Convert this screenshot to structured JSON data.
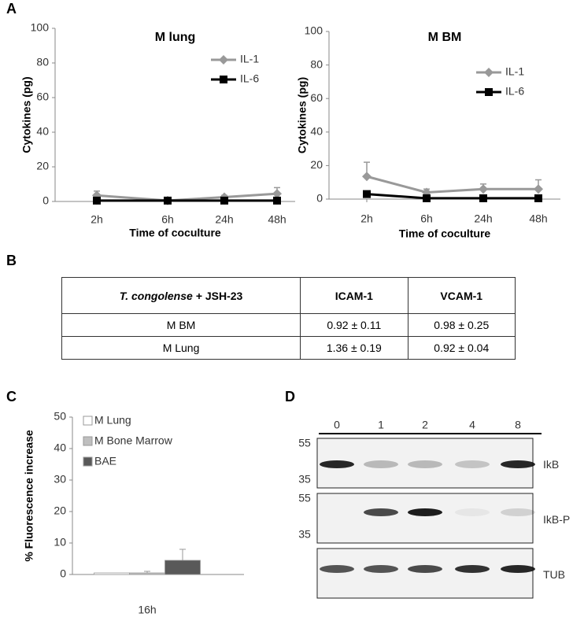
{
  "panel_labels": [
    "A",
    "B",
    "C",
    "D"
  ],
  "chart_data": [
    {
      "type": "line",
      "title": "M lung",
      "x_label": "Time of coculture",
      "y_label": "Cytokines (pg)",
      "categories": [
        "2h",
        "6h",
        "24h",
        "48h"
      ],
      "ylim": [
        0,
        100
      ],
      "yticks": [
        0,
        20,
        40,
        60,
        80,
        100
      ],
      "grid": false,
      "legend": "upper right",
      "series": [
        {
          "name": "IL-1",
          "color": "#999999",
          "marker": "diamond",
          "values": [
            3.5,
            0.5,
            2.5,
            4.5
          ],
          "errors": [
            2.5,
            0.5,
            1,
            3.5
          ]
        },
        {
          "name": "IL-6",
          "color": "#000000",
          "marker": "square",
          "values": [
            0.5,
            0.5,
            0.5,
            0.5
          ]
        }
      ]
    },
    {
      "type": "line",
      "title": "M BM",
      "x_label": "Time of coculture",
      "y_label": "Cytokines (pg)",
      "categories": [
        "2h",
        "6h",
        "24h",
        "48h"
      ],
      "ylim": [
        0,
        100
      ],
      "yticks": [
        0,
        20,
        40,
        60,
        80,
        100
      ],
      "grid": false,
      "legend": "upper right",
      "series": [
        {
          "name": "IL-1",
          "color": "#999999",
          "marker": "diamond",
          "values": [
            13.5,
            4,
            6,
            6
          ],
          "errors": [
            8.5,
            2,
            3,
            5.5
          ]
        },
        {
          "name": "IL-6",
          "color": "#000000",
          "marker": "square",
          "values": [
            3,
            0.5,
            0.5,
            0.5
          ]
        }
      ]
    },
    {
      "type": "bar",
      "y_label": "% Fluorescence increase",
      "categories": [
        "16h"
      ],
      "ylim": [
        0,
        50
      ],
      "yticks": [
        0,
        10,
        20,
        30,
        40,
        50
      ],
      "grid": false,
      "legend": "upper left",
      "series": [
        {
          "name": "M Lung",
          "color": "#ffffff",
          "values": [
            0.5
          ]
        },
        {
          "name": "M Bone Marrow",
          "color": "#bfbfbf",
          "values": [
            0.5
          ],
          "errors": [
            0.5
          ]
        },
        {
          "name": "BAE",
          "color": "#595959",
          "values": [
            4.5
          ],
          "errors": [
            3.5
          ]
        }
      ]
    }
  ],
  "table": {
    "header": [
      [
        "T. congolense",
        "+ JSH-23"
      ],
      "ICAM-1",
      "VCAM-1"
    ],
    "rows": [
      [
        "M BM",
        "0.92 ± 0.11",
        "0.98 ± 0.25"
      ],
      [
        "M Lung",
        "1.36 ± 0.19",
        "0.92 ± 0.04"
      ]
    ]
  },
  "blot": {
    "lanes": [
      "0",
      "1",
      "2",
      "4",
      "8"
    ],
    "panels": [
      {
        "label": "IkB",
        "markers": [
          "55",
          "35"
        ]
      },
      {
        "label": "IkB-P",
        "markers": [
          "55",
          "35"
        ]
      },
      {
        "label": "TUB"
      }
    ]
  }
}
